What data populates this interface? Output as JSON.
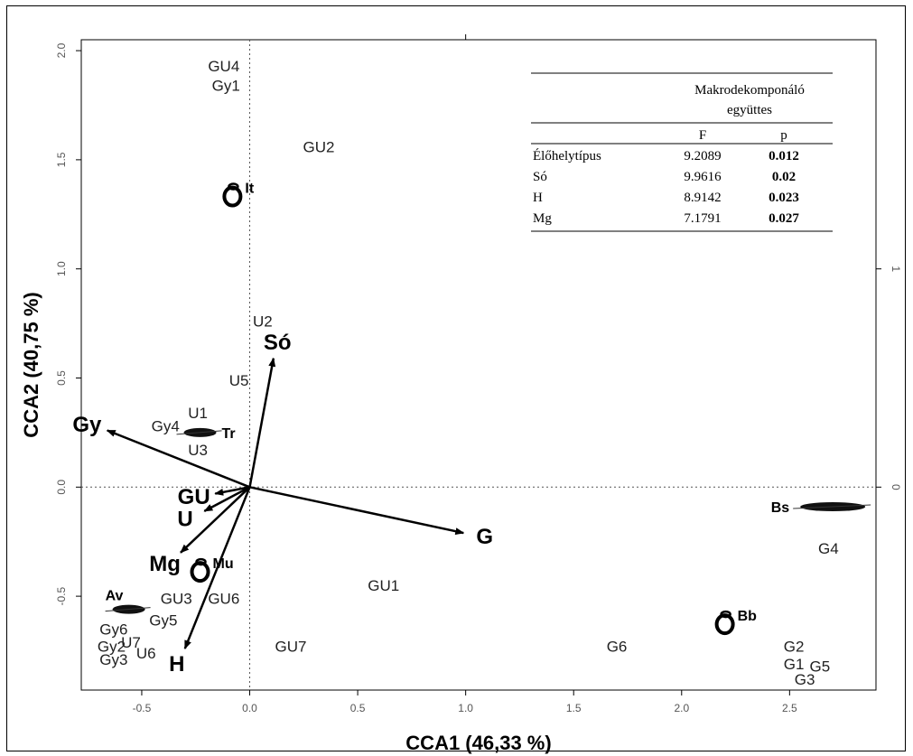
{
  "chart_data": {
    "type": "scatter",
    "xlabel": "CCA1 (46,33 %)",
    "ylabel": "CCA2 (40,75 %)",
    "xlim": [
      -0.78,
      2.9
    ],
    "ylim": [
      -0.93,
      2.05
    ],
    "xticks": [
      "-0.5",
      "0.0",
      "0.5",
      "1.0",
      "1.5",
      "2.0",
      "2.5"
    ],
    "xtick_values": [
      -0.5,
      0.0,
      0.5,
      1.0,
      1.5,
      2.0,
      2.5
    ],
    "yticks": [
      "-0.5",
      "0.0",
      "0.5",
      "1.0",
      "1.5",
      "2.0"
    ],
    "ytick_values": [
      -0.5,
      0.0,
      0.5,
      1.0,
      1.5,
      2.0
    ],
    "right_ticks": [
      "0",
      "1"
    ],
    "right_tick_values": [
      0,
      1
    ],
    "sites": [
      {
        "label": "GU4",
        "x": -0.12,
        "y": 1.93
      },
      {
        "label": "Gy1",
        "x": -0.11,
        "y": 1.84
      },
      {
        "label": "GU2",
        "x": 0.32,
        "y": 1.56
      },
      {
        "label": "U2",
        "x": 0.06,
        "y": 0.76
      },
      {
        "label": "U5",
        "x": -0.05,
        "y": 0.49
      },
      {
        "label": "U1",
        "x": -0.24,
        "y": 0.34
      },
      {
        "label": "Gy4",
        "x": -0.39,
        "y": 0.28
      },
      {
        "label": "U3",
        "x": -0.24,
        "y": 0.17
      },
      {
        "label": "GU1",
        "x": 0.62,
        "y": -0.45
      },
      {
        "label": "GU3",
        "x": -0.34,
        "y": -0.51
      },
      {
        "label": "GU6",
        "x": -0.12,
        "y": -0.51
      },
      {
        "label": "Gy5",
        "x": -0.4,
        "y": -0.61
      },
      {
        "label": "Gy6",
        "x": -0.63,
        "y": -0.65
      },
      {
        "label": "Gy2",
        "x": -0.64,
        "y": -0.73
      },
      {
        "label": "U7",
        "x": -0.55,
        "y": -0.71
      },
      {
        "label": "U6",
        "x": -0.48,
        "y": -0.76
      },
      {
        "label": "Gy3",
        "x": -0.63,
        "y": -0.79
      },
      {
        "label": "GU7",
        "x": 0.19,
        "y": -0.73
      },
      {
        "label": "G6",
        "x": 1.7,
        "y": -0.73
      },
      {
        "label": "G4",
        "x": 2.68,
        "y": -0.28
      },
      {
        "label": "G2",
        "x": 2.52,
        "y": -0.73
      },
      {
        "label": "G1",
        "x": 2.52,
        "y": -0.81
      },
      {
        "label": "G5",
        "x": 2.64,
        "y": -0.82
      },
      {
        "label": "G3",
        "x": 2.57,
        "y": -0.88
      }
    ],
    "env_arrows": [
      {
        "label": "Só",
        "x": 0.11,
        "y": 0.59
      },
      {
        "label": "Gy",
        "x": -0.66,
        "y": 0.26
      },
      {
        "label": "GU",
        "x": -0.16,
        "y": -0.03
      },
      {
        "label": "U",
        "x": -0.21,
        "y": -0.11
      },
      {
        "label": "Mg",
        "x": -0.32,
        "y": -0.3
      },
      {
        "label": "H",
        "x": -0.3,
        "y": -0.74
      },
      {
        "label": "G",
        "x": 0.99,
        "y": -0.21
      }
    ],
    "species_clusters": [
      {
        "label": "It",
        "x": -0.08,
        "y": 1.34,
        "shape": "loop"
      },
      {
        "label": "Tr",
        "x": -0.23,
        "y": 0.25,
        "shape": "cloud"
      },
      {
        "label": "Mu",
        "x": -0.23,
        "y": -0.38,
        "shape": "loop"
      },
      {
        "label": "Av",
        "x": -0.56,
        "y": -0.56,
        "shape": "cloud"
      },
      {
        "label": "Bs",
        "x": 2.7,
        "y": -0.09,
        "shape": "cloud"
      },
      {
        "label": "Bb",
        "x": 2.2,
        "y": -0.62,
        "shape": "loop"
      }
    ]
  },
  "table": {
    "title_line1": "Makrodekomponáló",
    "title_line2": "együttes",
    "col_f": "F",
    "col_p": "p",
    "rows": [
      {
        "name": "Élőhelytípus",
        "f": "9.2089",
        "p": "0.012"
      },
      {
        "name": "Só",
        "f": "9.9616",
        "p": "0.02"
      },
      {
        "name": "H",
        "f": "8.9142",
        "p": "0.023"
      },
      {
        "name": "Mg",
        "f": "7.1791",
        "p": "0.027"
      }
    ]
  }
}
